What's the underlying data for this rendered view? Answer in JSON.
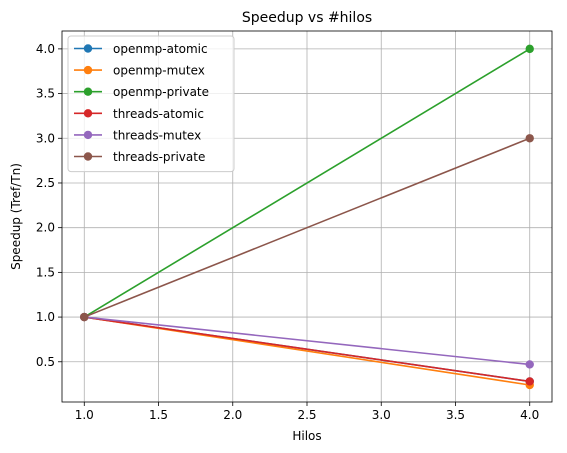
{
  "chart_data": {
    "type": "line",
    "title": "Speedup vs #hilos",
    "xlabel": "Hilos",
    "ylabel": "Speedup (Tref/Tn)",
    "xlim": [
      0.85,
      4.15
    ],
    "ylim": [
      0.05,
      4.2
    ],
    "xticks": [
      1.0,
      1.5,
      2.0,
      2.5,
      3.0,
      3.5,
      4.0
    ],
    "xtick_labels": [
      "1.0",
      "1.5",
      "2.0",
      "2.5",
      "3.0",
      "3.5",
      "4.0"
    ],
    "yticks": [
      0.5,
      1.0,
      1.5,
      2.0,
      2.5,
      3.0,
      3.5,
      4.0
    ],
    "ytick_labels": [
      "0.5",
      "1.0",
      "1.5",
      "2.0",
      "2.5",
      "3.0",
      "3.5",
      "4.0"
    ],
    "grid": true,
    "legend_position": "top-left",
    "x": [
      1,
      4
    ],
    "series": [
      {
        "name": "openmp-atomic",
        "color": "#1f77b4",
        "values": [
          1.0,
          0.28
        ]
      },
      {
        "name": "openmp-mutex",
        "color": "#ff7f0e",
        "values": [
          1.0,
          0.24
        ]
      },
      {
        "name": "openmp-private",
        "color": "#2ca02c",
        "values": [
          1.0,
          4.0
        ]
      },
      {
        "name": "threads-atomic",
        "color": "#d62728",
        "values": [
          1.0,
          0.28
        ]
      },
      {
        "name": "threads-mutex",
        "color": "#9467bd",
        "values": [
          1.0,
          0.47
        ]
      },
      {
        "name": "threads-private",
        "color": "#8c564b",
        "values": [
          1.0,
          3.0
        ]
      }
    ]
  }
}
